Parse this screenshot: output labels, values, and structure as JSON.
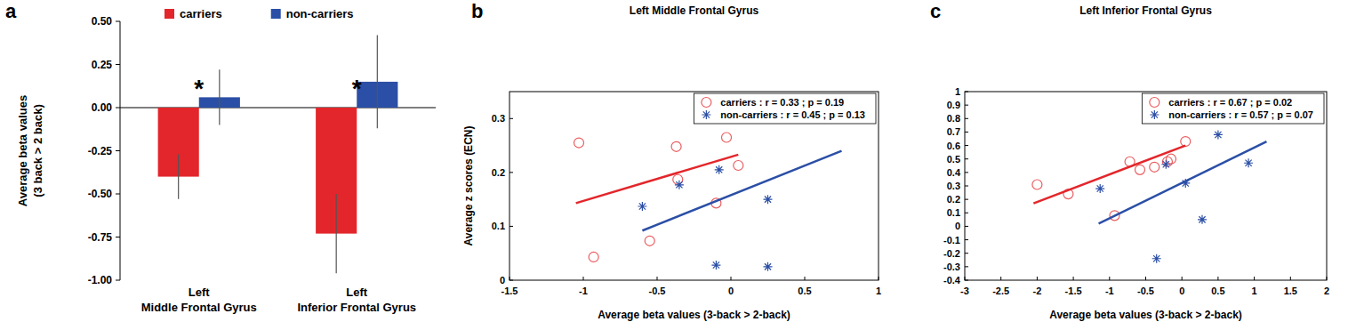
{
  "chart_data": [
    {
      "type": "bar",
      "panel_label": "a",
      "ylabel": "Average beta values\n(3 back > 2 back)",
      "categories": [
        "Left\nMiddle Frontal Gyrus",
        "Left\nInferior Frontal Gyrus"
      ],
      "series": [
        {
          "name": "carriers",
          "color": "#e3262b",
          "values": [
            -0.4,
            -0.73
          ],
          "errors": [
            0.13,
            0.23
          ]
        },
        {
          "name": "non-carriers",
          "color": "#2b4fa6",
          "values": [
            0.06,
            0.15
          ],
          "errors": [
            0.16,
            0.27
          ]
        }
      ],
      "ylim": [
        -1,
        0.5
      ],
      "yticks": [
        {
          "value": -1,
          "label": "-1.00"
        },
        {
          "value": -0.75,
          "label": "-0.75"
        },
        {
          "value": -0.5,
          "label": "-0.50"
        },
        {
          "value": -0.25,
          "label": "-0.25"
        },
        {
          "value": 0,
          "label": "0.00"
        },
        {
          "value": 0.25,
          "label": "0.25"
        },
        {
          "value": 0.5,
          "label": "0.50"
        }
      ],
      "annotations": [
        {
          "text": "*",
          "category": 0
        },
        {
          "text": "*",
          "category": 1
        }
      ],
      "legend": "top"
    },
    {
      "type": "scatter",
      "panel_label": "b",
      "title": "Left Middle Frontal Gyrus",
      "xlabel": "Average beta values (3-back > 2-back)",
      "ylabel": "Average z scores (ECN)",
      "xlim": [
        -1.5,
        1
      ],
      "xticks": [
        -1.5,
        -1,
        -0.5,
        0,
        0.5,
        1
      ],
      "ylim": [
        0,
        0.35
      ],
      "yticks": [
        0,
        0.1,
        0.2,
        0.3
      ],
      "legend": "top-right",
      "series": [
        {
          "name": "carriers : r = 0.33 ; p = 0.19",
          "color": "#e3262b",
          "marker": "circle",
          "x": [
            -1.03,
            -0.93,
            -0.37,
            -0.36,
            -0.55,
            -0.1,
            -0.03,
            0.05
          ],
          "values": [
            0.255,
            0.043,
            0.248,
            0.187,
            0.073,
            0.143,
            0.265,
            0.213
          ],
          "fit": {
            "x": [
              -1.05,
              0.05
            ],
            "values": [
              0.143,
              0.233
            ]
          }
        },
        {
          "name": "non-carriers : r = 0.45 ; p = 0.13",
          "color": "#2b4fa6",
          "marker": "star",
          "x": [
            -0.6,
            -0.35,
            -0.08,
            -0.1,
            0.25,
            0.25
          ],
          "values": [
            0.137,
            0.177,
            0.205,
            0.028,
            0.15,
            0.025
          ],
          "fit": {
            "x": [
              -0.6,
              0.75
            ],
            "values": [
              0.092,
              0.24
            ]
          }
        }
      ]
    },
    {
      "type": "scatter",
      "panel_label": "c",
      "title": "Left Inferior Frontal Gyrus",
      "xlabel": "Average beta values (3-back > 2-back)",
      "xlim": [
        -3,
        2
      ],
      "xticks": [
        -3,
        -2.5,
        -2,
        -1.5,
        -1,
        -0.5,
        0,
        0.5,
        1,
        1.5,
        2
      ],
      "ylim": [
        -0.4,
        1
      ],
      "yticks": [
        -0.4,
        -0.3,
        -0.2,
        -0.1,
        0,
        0.1,
        0.2,
        0.3,
        0.4,
        0.5,
        0.6,
        0.7,
        0.8,
        0.9,
        1
      ],
      "legend": "top-right",
      "series": [
        {
          "name": "carriers : r = 0.67 ; p = 0.02",
          "color": "#e3262b",
          "marker": "circle",
          "x": [
            -2.0,
            -1.57,
            -0.93,
            -0.72,
            -0.58,
            -0.38,
            -0.2,
            -0.15,
            0.05
          ],
          "values": [
            0.31,
            0.24,
            0.08,
            0.48,
            0.42,
            0.44,
            0.48,
            0.5,
            0.63
          ],
          "fit": {
            "x": [
              -2.05,
              0.05
            ],
            "values": [
              0.17,
              0.6
            ]
          }
        },
        {
          "name": "non-carriers : r = 0.57 ; p = 0.07",
          "color": "#2b4fa6",
          "marker": "star",
          "x": [
            -1.13,
            -0.35,
            -0.22,
            0.05,
            0.28,
            0.5,
            0.92
          ],
          "values": [
            0.28,
            -0.24,
            0.46,
            0.32,
            0.05,
            0.68,
            0.47
          ],
          "fit": {
            "x": [
              -1.15,
              1.17
            ],
            "values": [
              0.02,
              0.63
            ]
          }
        }
      ]
    }
  ]
}
